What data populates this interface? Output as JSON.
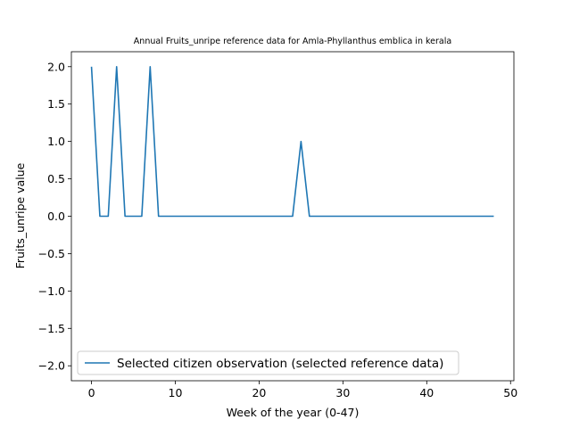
{
  "chart_data": {
    "type": "line",
    "title": "Annual Fruits_unripe reference data for Amla-Phyllanthus emblica in kerala",
    "xlabel": "Week of the year (0-47)",
    "ylabel": "Fruits_unripe value",
    "xlim": [
      -2.4,
      50.4
    ],
    "ylim": [
      -2.2,
      2.2
    ],
    "x_ticks": [
      0,
      10,
      20,
      30,
      40,
      50
    ],
    "x_tick_labels": [
      "0",
      "10",
      "20",
      "30",
      "40",
      "50"
    ],
    "y_ticks": [
      2.0,
      1.5,
      1.0,
      0.5,
      0.0,
      -0.5,
      -1.0,
      -1.5,
      -2.0
    ],
    "y_tick_labels": [
      "2.0",
      "1.5",
      "1.0",
      "0.5",
      "0.0",
      "−0.5",
      "−1.0",
      "−1.5",
      "−2.0"
    ],
    "grid": false,
    "legend_position": "lower-left",
    "series": [
      {
        "name": "Selected citizen observation (selected reference data)",
        "color": "#1f77b4",
        "x": [
          0,
          1,
          2,
          3,
          4,
          5,
          6,
          7,
          8,
          9,
          10,
          11,
          12,
          13,
          14,
          15,
          16,
          17,
          18,
          19,
          20,
          21,
          22,
          23,
          24,
          25,
          26,
          27,
          28,
          29,
          30,
          31,
          32,
          33,
          34,
          35,
          36,
          37,
          38,
          39,
          40,
          41,
          42,
          43,
          44,
          45,
          46,
          47,
          48
        ],
        "y": [
          2,
          0,
          0,
          2,
          0,
          0,
          0,
          2,
          0,
          0,
          0,
          0,
          0,
          0,
          0,
          0,
          0,
          0,
          0,
          0,
          0,
          0,
          0,
          0,
          0,
          1,
          0,
          0,
          0,
          0,
          0,
          0,
          0,
          0,
          0,
          0,
          0,
          0,
          0,
          0,
          0,
          0,
          0,
          0,
          0,
          0,
          0,
          0,
          0
        ]
      }
    ]
  }
}
